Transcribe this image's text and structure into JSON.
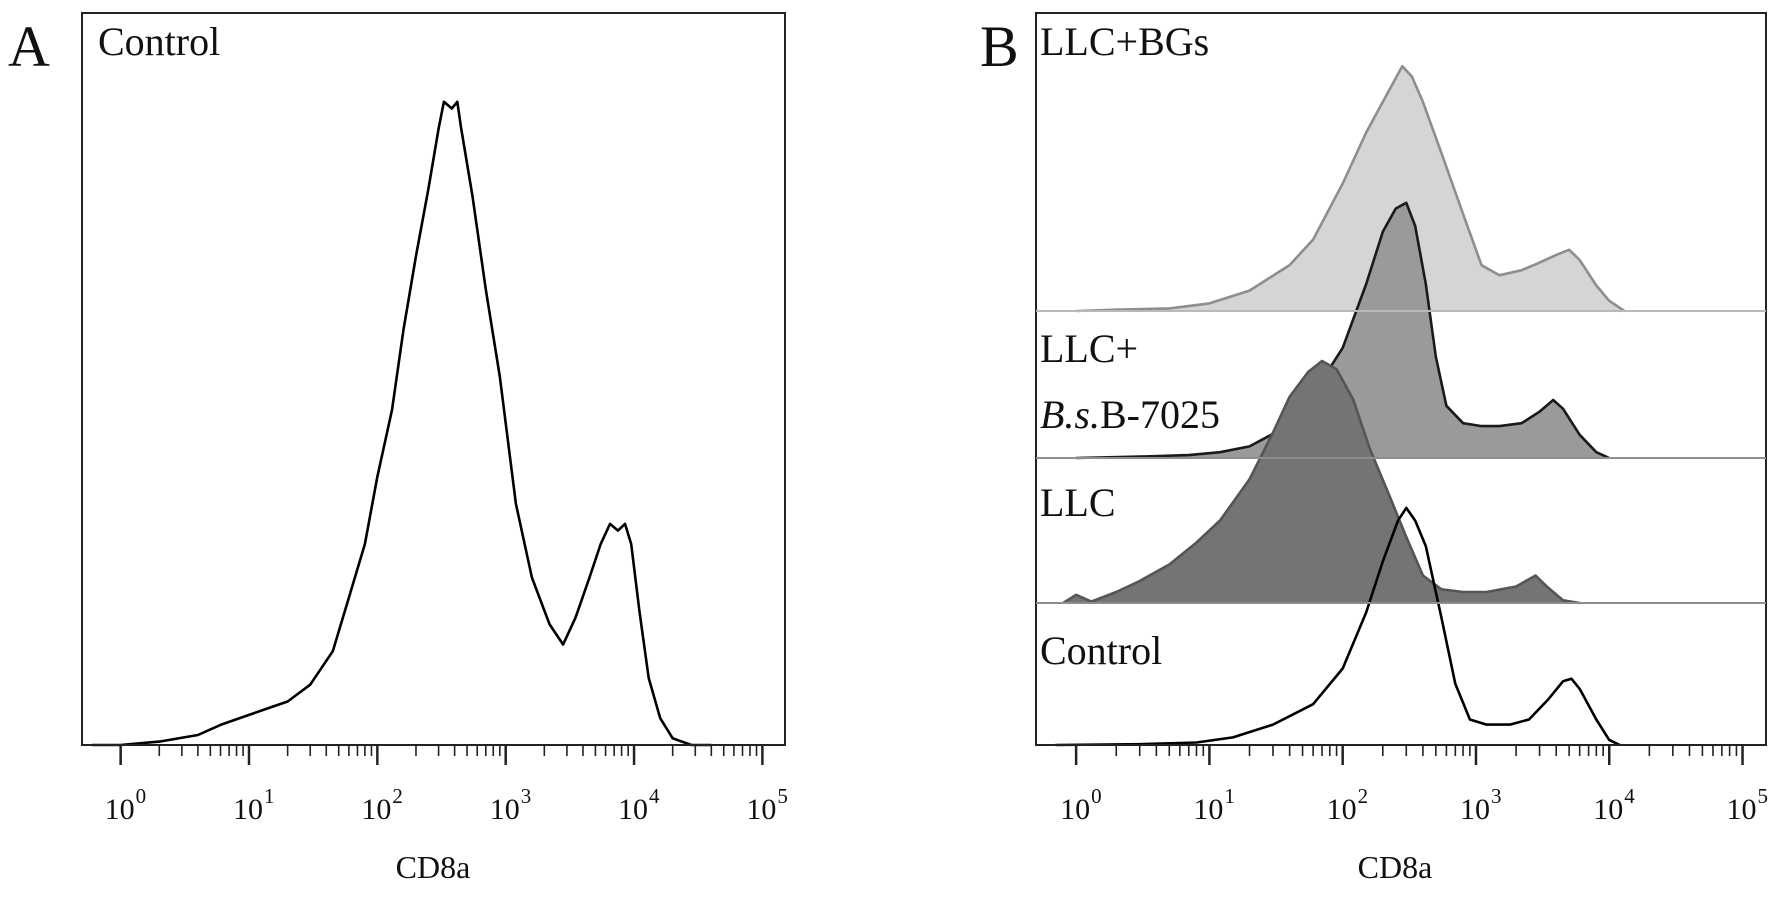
{
  "chart_data": [
    {
      "type": "area",
      "panel": "A",
      "corner_label": "Control",
      "xlabel": "CD8a",
      "ylabel": "",
      "x_scale": "log",
      "xlim": [
        0.5,
        150000
      ],
      "ylim": [
        0,
        1.0
      ],
      "x_ticks": [
        {
          "base": "10",
          "exp": "0"
        },
        {
          "base": "10",
          "exp": "1"
        },
        {
          "base": "10",
          "exp": "2"
        },
        {
          "base": "10",
          "exp": "3"
        },
        {
          "base": "10",
          "exp": "4"
        },
        {
          "base": "10",
          "exp": "5"
        }
      ],
      "series": [
        {
          "label": "Control",
          "fill": "none",
          "stroke": "#000000",
          "points": [
            [
              0.6,
              0
            ],
            [
              1,
              0
            ],
            [
              2,
              0.005
            ],
            [
              4,
              0.015
            ],
            [
              6,
              0.03
            ],
            [
              10,
              0.045
            ],
            [
              20,
              0.065
            ],
            [
              30,
              0.09
            ],
            [
              45,
              0.14
            ],
            [
              60,
              0.22
            ],
            [
              80,
              0.3
            ],
            [
              100,
              0.4
            ],
            [
              130,
              0.5
            ],
            [
              160,
              0.62
            ],
            [
              200,
              0.73
            ],
            [
              250,
              0.83
            ],
            [
              300,
              0.92
            ],
            [
              330,
              0.96
            ],
            [
              380,
              0.95
            ],
            [
              420,
              0.96
            ],
            [
              450,
              0.92
            ],
            [
              550,
              0.82
            ],
            [
              700,
              0.68
            ],
            [
              900,
              0.55
            ],
            [
              1200,
              0.36
            ],
            [
              1600,
              0.25
            ],
            [
              2200,
              0.18
            ],
            [
              2800,
              0.15
            ],
            [
              3500,
              0.19
            ],
            [
              4500,
              0.25
            ],
            [
              5500,
              0.3
            ],
            [
              6500,
              0.33
            ],
            [
              7500,
              0.32
            ],
            [
              8500,
              0.33
            ],
            [
              9500,
              0.3
            ],
            [
              11000,
              0.2
            ],
            [
              13000,
              0.1
            ],
            [
              16000,
              0.04
            ],
            [
              20000,
              0.01
            ],
            [
              28000,
              0
            ],
            [
              40000,
              0
            ]
          ]
        }
      ]
    },
    {
      "type": "area",
      "panel": "B",
      "xlabel": "CD8a",
      "ylabel": "",
      "x_scale": "log",
      "xlim": [
        0.5,
        150000
      ],
      "x_ticks": [
        {
          "base": "10",
          "exp": "0"
        },
        {
          "base": "10",
          "exp": "1"
        },
        {
          "base": "10",
          "exp": "2"
        },
        {
          "base": "10",
          "exp": "3"
        },
        {
          "base": "10",
          "exp": "4"
        },
        {
          "base": "10",
          "exp": "5"
        }
      ],
      "series": [
        {
          "label": "LLC+BGs",
          "fill": "#d5d5d5",
          "stroke": "#8e8e8e",
          "points": [
            [
              1,
              0
            ],
            [
              2,
              0.005
            ],
            [
              5,
              0.01
            ],
            [
              10,
              0.03
            ],
            [
              20,
              0.08
            ],
            [
              40,
              0.18
            ],
            [
              60,
              0.28
            ],
            [
              100,
              0.5
            ],
            [
              150,
              0.7
            ],
            [
              220,
              0.86
            ],
            [
              280,
              0.96
            ],
            [
              330,
              0.92
            ],
            [
              400,
              0.82
            ],
            [
              550,
              0.62
            ],
            [
              800,
              0.38
            ],
            [
              1100,
              0.18
            ],
            [
              1500,
              0.14
            ],
            [
              2200,
              0.16
            ],
            [
              3000,
              0.19
            ],
            [
              4000,
              0.22
            ],
            [
              5000,
              0.24
            ],
            [
              6000,
              0.2
            ],
            [
              8000,
              0.1
            ],
            [
              10000,
              0.04
            ],
            [
              13000,
              0
            ]
          ]
        },
        {
          "label_line1": "LLC+",
          "label_line2_italic": "B.s.",
          "label_line2": "B-7025",
          "fill": "#9a9a9a",
          "stroke": "#1a1a1a",
          "points": [
            [
              1,
              0
            ],
            [
              3,
              0.005
            ],
            [
              7,
              0.01
            ],
            [
              12,
              0.02
            ],
            [
              20,
              0.04
            ],
            [
              35,
              0.1
            ],
            [
              60,
              0.22
            ],
            [
              100,
              0.38
            ],
            [
              150,
              0.6
            ],
            [
              200,
              0.78
            ],
            [
              250,
              0.86
            ],
            [
              300,
              0.88
            ],
            [
              350,
              0.8
            ],
            [
              420,
              0.6
            ],
            [
              500,
              0.35
            ],
            [
              600,
              0.18
            ],
            [
              800,
              0.12
            ],
            [
              1100,
              0.11
            ],
            [
              1500,
              0.11
            ],
            [
              2200,
              0.12
            ],
            [
              3000,
              0.16
            ],
            [
              3800,
              0.2
            ],
            [
              4500,
              0.17
            ],
            [
              6000,
              0.08
            ],
            [
              8000,
              0.02
            ],
            [
              10000,
              0
            ]
          ]
        },
        {
          "label": "LLC",
          "fill": "#747474",
          "stroke": "#555555",
          "points": [
            [
              0.8,
              0
            ],
            [
              1,
              0.03
            ],
            [
              1.3,
              0.005
            ],
            [
              2,
              0.04
            ],
            [
              3,
              0.08
            ],
            [
              5,
              0.14
            ],
            [
              8,
              0.22
            ],
            [
              12,
              0.3
            ],
            [
              20,
              0.45
            ],
            [
              30,
              0.62
            ],
            [
              40,
              0.75
            ],
            [
              55,
              0.84
            ],
            [
              70,
              0.88
            ],
            [
              90,
              0.85
            ],
            [
              120,
              0.74
            ],
            [
              160,
              0.56
            ],
            [
              220,
              0.4
            ],
            [
              300,
              0.24
            ],
            [
              400,
              0.1
            ],
            [
              550,
              0.05
            ],
            [
              800,
              0.04
            ],
            [
              1200,
              0.04
            ],
            [
              2000,
              0.06
            ],
            [
              2800,
              0.1
            ],
            [
              3400,
              0.06
            ],
            [
              4500,
              0.01
            ],
            [
              6000,
              0
            ]
          ]
        },
        {
          "label": "Control",
          "fill": "none",
          "stroke": "#000000",
          "points": [
            [
              0.7,
              0
            ],
            [
              3,
              0.003
            ],
            [
              8,
              0.01
            ],
            [
              15,
              0.03
            ],
            [
              30,
              0.08
            ],
            [
              60,
              0.16
            ],
            [
              100,
              0.3
            ],
            [
              150,
              0.52
            ],
            [
              200,
              0.72
            ],
            [
              260,
              0.88
            ],
            [
              300,
              0.93
            ],
            [
              350,
              0.88
            ],
            [
              420,
              0.78
            ],
            [
              550,
              0.5
            ],
            [
              700,
              0.24
            ],
            [
              900,
              0.1
            ],
            [
              1200,
              0.08
            ],
            [
              1800,
              0.08
            ],
            [
              2500,
              0.1
            ],
            [
              3500,
              0.18
            ],
            [
              4500,
              0.25
            ],
            [
              5200,
              0.26
            ],
            [
              6000,
              0.22
            ],
            [
              8000,
              0.1
            ],
            [
              10000,
              0.02
            ],
            [
              12000,
              0
            ]
          ]
        }
      ]
    }
  ]
}
